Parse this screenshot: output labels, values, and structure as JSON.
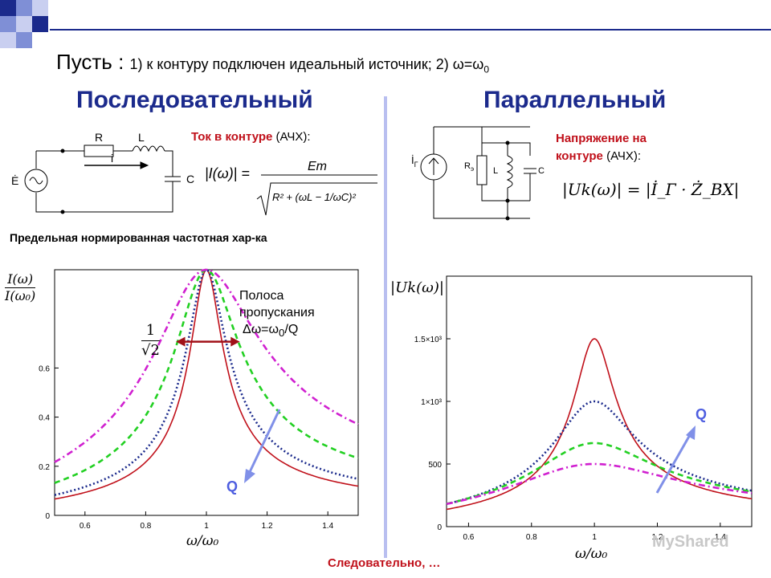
{
  "slide": {
    "title_prefix": "Пусть : ",
    "title_text": "1) к контуру подключен идеальный источник; 2) ω=ω",
    "title_sub": "0",
    "heading_left": "Последовательный",
    "heading_right": "Параллельный",
    "series_label_red": "Ток в контуре",
    "series_label_rest": " (АЧХ):",
    "parallel_label_red_1": "Напряжение на",
    "parallel_label_red_2": "контуре",
    "parallel_label_rest": "  (АЧХ):",
    "limit_label": "Предельная нормированная частотная хар-ка",
    "band_1": "Полоса",
    "band_2": "пропускания",
    "band_3_a": "Δω=ω",
    "band_3_sub": "0",
    "band_3_b": "/Q",
    "footer": "Следовательно, …",
    "q_left": "Q",
    "q_right": "Q",
    "watermark": "MyShared"
  },
  "series_circuit": {
    "source": "Ė",
    "r": "R",
    "l": "L",
    "c": "C",
    "current": "i"
  },
  "parallel_circuit": {
    "source": "İ",
    "source_sub": "Г",
    "r": "R",
    "r_sub": "э",
    "l": "L",
    "c": "C"
  },
  "formulas": {
    "series_lhs": "|I(ω)| =",
    "series_num": "Em",
    "series_den": "R² + (ωL − 1/ωC)²",
    "parallel": "|Uk(ω)| = |İ_Г · Ż_ВХ|",
    "half_power_num": "1",
    "half_power_den": "√2",
    "left_ylabel_num": "I(ω)",
    "left_ylabel_den": "I(ω₀)",
    "right_ylabel": "|Uk(ω)|",
    "left_xlabel": "ω/ω₀",
    "right_xlabel": "ω/ω₀"
  },
  "chart_data": [
    {
      "type": "line",
      "xlim": [
        0.5,
        1.5
      ],
      "ylim": [
        0,
        1
      ],
      "x_ticks": [
        "0.6",
        "0.8",
        "1",
        "1.2",
        "1.4"
      ],
      "y_ticks": [
        "0",
        "0.2",
        "0.4",
        "0.6"
      ],
      "grid": false,
      "series": [
        {
          "color": "#c0101a",
          "style": "solid",
          "q": 10
        },
        {
          "color": "#1b2a8c",
          "style": "dotted",
          "q": 8
        },
        {
          "color": "#22d022",
          "style": "dashed",
          "q": 5
        },
        {
          "color": "#d020d0",
          "style": "dashdot",
          "q": 3
        }
      ]
    },
    {
      "type": "line",
      "xlim": [
        0.53,
        1.5
      ],
      "ylim": [
        0,
        2000
      ],
      "x_ticks": [
        "0.6",
        "0.8",
        "1",
        "1.2",
        "1.4"
      ],
      "y_ticks": [
        "0",
        "500",
        "1×10³",
        "1.5×10³"
      ],
      "grid": false,
      "series": [
        {
          "color": "#c0101a",
          "style": "solid",
          "peak": 1500,
          "q": 8
        },
        {
          "color": "#1b2a8c",
          "style": "dotted",
          "peak": 1000,
          "q": 4
        },
        {
          "color": "#22d022",
          "style": "dashed",
          "peak": 667,
          "q": 2.6
        },
        {
          "color": "#d020d0",
          "style": "dashdot",
          "peak": 500,
          "q": 1.9
        }
      ]
    }
  ]
}
